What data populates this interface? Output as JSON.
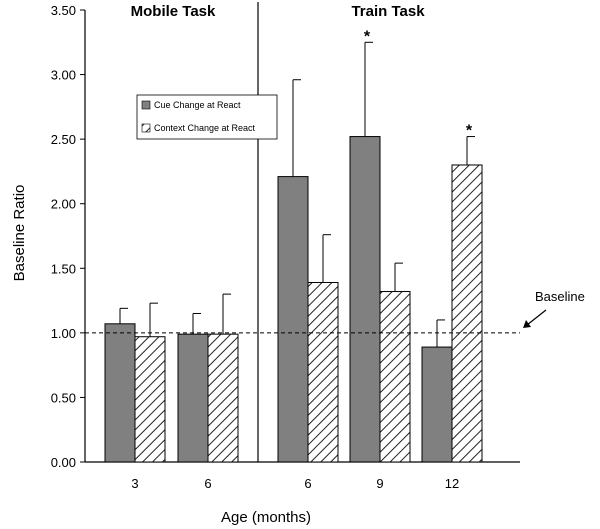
{
  "chart_data": {
    "type": "bar",
    "ylabel": "Baseline Ratio",
    "xlabel": "Age (months)",
    "ylim": [
      0,
      3.5
    ],
    "yticks": [
      "0.00",
      "0.50",
      "1.00",
      "1.50",
      "2.00",
      "2.50",
      "3.00",
      "3.50"
    ],
    "panels": [
      "Mobile Task",
      "Train Task"
    ],
    "categories": [
      "3",
      "6",
      "6",
      "9",
      "12"
    ],
    "category_panel": [
      "Mobile Task",
      "Mobile Task",
      "Train Task",
      "Train Task",
      "Train Task"
    ],
    "series": [
      {
        "name": "Cue Change at React",
        "pattern": "solid",
        "color": "#808080",
        "values": [
          1.07,
          0.99,
          2.21,
          2.52,
          0.89
        ],
        "error": [
          0.12,
          0.16,
          0.75,
          0.73,
          0.21
        ]
      },
      {
        "name": "Context Change at React",
        "pattern": "hatched",
        "color": "#ffffff",
        "values": [
          0.97,
          0.99,
          1.39,
          1.32,
          2.3
        ],
        "error": [
          0.26,
          0.31,
          0.37,
          0.22,
          0.22
        ]
      }
    ],
    "significance": [
      {
        "category_index": 3,
        "series": "Cue Change at React",
        "label": "*"
      },
      {
        "category_index": 4,
        "series": "Context Change at React",
        "label": "*"
      }
    ],
    "baseline": {
      "value": 1.0,
      "label": "Baseline"
    },
    "legend": "upper-left inside plot",
    "grid": false
  }
}
